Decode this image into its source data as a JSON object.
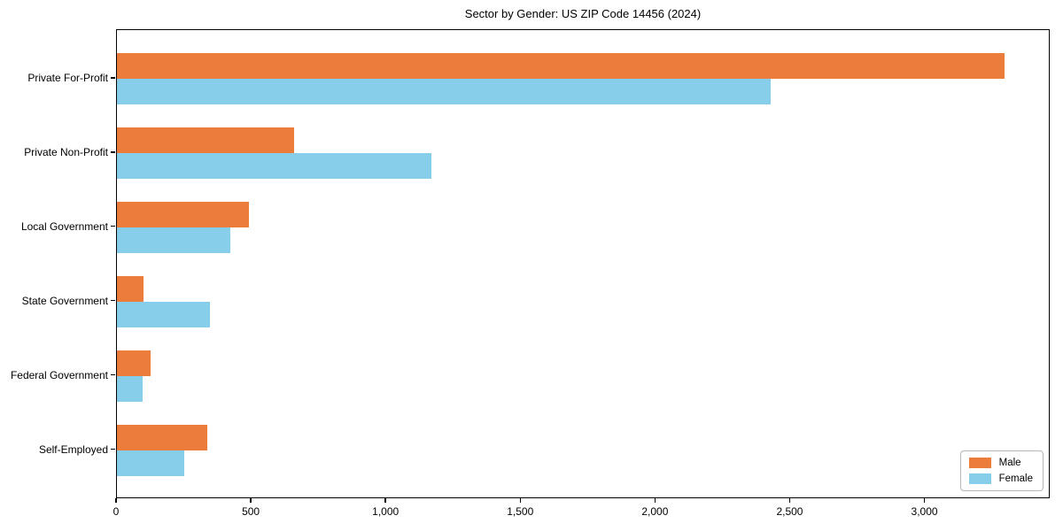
{
  "chart_data": {
    "type": "bar",
    "orientation": "horizontal",
    "title": "Sector by Gender: US ZIP Code 14456 (2024)",
    "categories": [
      "Private For-Profit",
      "Private Non-Profit",
      "Local Government",
      "State Government",
      "Federal Government",
      "Self-Employed"
    ],
    "series": [
      {
        "name": "Male",
        "color": "#EC7C3C",
        "values": [
          3300,
          660,
          490,
          100,
          125,
          335
        ]
      },
      {
        "name": "Female",
        "color": "#87CEEB",
        "values": [
          2430,
          1170,
          420,
          345,
          95,
          250
        ]
      }
    ],
    "xlabel": "",
    "ylabel": "",
    "xlim": [
      0,
      3465
    ],
    "xticks": [
      0,
      500,
      1000,
      1500,
      2000,
      2500,
      3000
    ],
    "xtick_labels": [
      "0",
      "500",
      "1,000",
      "1,500",
      "2,000",
      "2,500",
      "3,000"
    ],
    "grid": false,
    "legend": {
      "position": "lower right",
      "entries": [
        "Male",
        "Female"
      ]
    },
    "colors": {
      "male": "#EC7C3C",
      "female": "#87CEEB",
      "spine": "#000000",
      "legend_border": "#b5b5b5",
      "background": "#ffffff"
    }
  }
}
